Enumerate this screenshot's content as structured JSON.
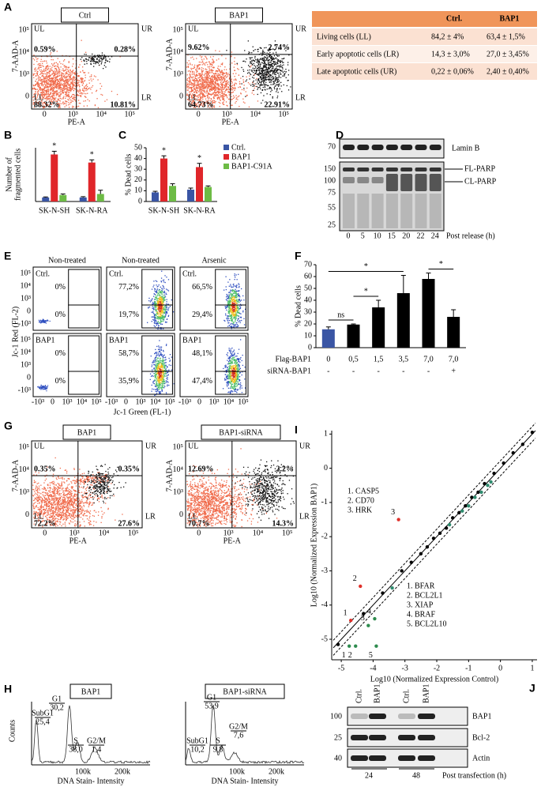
{
  "panel_labels": [
    "A",
    "B",
    "C",
    "D",
    "E",
    "F",
    "G",
    "H",
    "I",
    "J"
  ],
  "panel_a": {
    "plots": [
      {
        "title": "Ctrl",
        "percents": [
          "0.59%",
          "0.28%",
          "88.32%",
          "10.81%"
        ]
      },
      {
        "title": "BAP1",
        "percents": [
          "9.62%",
          "2.74%",
          "64.73%",
          "22.91%"
        ]
      }
    ],
    "quadrants": [
      "UL",
      "UR",
      "LL",
      "LR"
    ],
    "y_label": "7-AAD-A",
    "x_label": "PE-A",
    "yticks": [
      "10⁵",
      "10⁴",
      "10³",
      "0"
    ],
    "xticks": [
      "0",
      "10³",
      "10⁴",
      "10⁵"
    ]
  },
  "table": {
    "header": [
      "Ctrl.",
      "BAP1"
    ],
    "rows": [
      [
        "Living cells (LL)",
        "84,2 ± 4%",
        "63,4 ± 1,5%"
      ],
      [
        "Early apoptotic cells (LR)",
        "14,3 ± 3,0%",
        "27,0 ± 3,45%"
      ],
      [
        "Late apoptotic cells (UR)",
        "0,22 ± 0,06%",
        "2,40 ± 0,40%"
      ]
    ]
  },
  "chart_data": [
    {
      "type": "bar",
      "y_label": [
        "Number of",
        "fragmented cells"
      ],
      "categories": [
        "SK-N-SH",
        "SK-N-RA"
      ],
      "ylim": [
        0,
        200
      ],
      "series": [
        {
          "color": "#3a55a4",
          "values": [
            15,
            15
          ],
          "errors": [
            2,
            3
          ]
        },
        {
          "color": "#e0262a",
          "values": [
            175,
            145
          ],
          "errors": [
            12,
            10
          ]
        },
        {
          "color": "#6dbb45",
          "values": [
            24,
            28
          ],
          "errors": [
            4,
            14
          ]
        }
      ],
      "asterisks": [
        "*",
        "*"
      ]
    },
    {
      "type": "bar",
      "y_label": [
        "% Dead cells"
      ],
      "categories": [
        "SK-N-SH",
        "SK-N-RA"
      ],
      "ylim": [
        0,
        50
      ],
      "yticks": [
        0,
        10,
        20,
        30,
        40,
        50
      ],
      "legend": "right",
      "series": [
        {
          "name": "Ctrl.",
          "color": "#3a55a4",
          "values": [
            8.5,
            11
          ],
          "errors": [
            1,
            1.5
          ]
        },
        {
          "name": "BAP1",
          "color": "#e0262a",
          "values": [
            40,
            32
          ],
          "errors": [
            2.5,
            3.5
          ]
        },
        {
          "name": "BAP1-C91A",
          "color": "#6dbb45",
          "values": [
            14.5,
            13.5
          ],
          "errors": [
            2,
            1
          ]
        }
      ],
      "asterisks": [
        "*",
        "*"
      ]
    },
    {
      "type": "bar",
      "y_label": [
        "% Dead cells"
      ],
      "ylim": [
        0,
        70
      ],
      "yticks": [
        0,
        10,
        20,
        30,
        40,
        50,
        60,
        70
      ],
      "values": [
        15.5,
        19.5,
        34,
        46,
        58,
        26
      ],
      "errors": [
        2,
        0.5,
        6,
        15,
        5,
        6
      ],
      "colors": [
        "#3a55a4",
        "#000000",
        "#000000",
        "#000000",
        "#000000",
        "#000000"
      ],
      "rows": [
        {
          "name": "Flag-BAP1",
          "labels": [
            "0",
            "0,5",
            "1,5",
            "3,5",
            "7,0",
            "7,0"
          ]
        },
        {
          "name": "siRNA-BAP1",
          "labels": [
            "-",
            "-",
            "-",
            "-",
            "-",
            "+"
          ]
        }
      ],
      "brackets": [
        "ns",
        "*",
        "*",
        "*"
      ]
    },
    {
      "type": "scatter",
      "x_label": "Log10 (Normalized Expression Control)",
      "y_label": "Log10 (Normalized Expression BAP1)",
      "xlim": [
        -5.3,
        1.15
      ],
      "ylim": [
        -5.6,
        1.1
      ],
      "xticks": [
        -5,
        -4,
        -3,
        -2,
        -1,
        0,
        1
      ],
      "yticks": [
        1,
        0,
        -1,
        -2,
        -3,
        -4,
        -5
      ],
      "series": [
        {
          "color": "#000000",
          "x": [
            -5.1,
            -4.3,
            -3.7,
            -3.1,
            -2.8,
            -2.5,
            -2.3,
            -2.1,
            -1.9,
            -1.7,
            -1.5,
            -1.3,
            -1.1,
            -0.9,
            -0.7,
            -0.5,
            -0.2,
            0.1,
            0.4,
            0.7,
            1.0
          ],
          "y": [
            -5.15,
            -4.25,
            -3.65,
            -3.0,
            -2.75,
            -2.5,
            -2.3,
            -2.05,
            -1.9,
            -1.75,
            -1.45,
            -1.3,
            -1.1,
            -0.85,
            -0.7,
            -0.45,
            -0.15,
            0.15,
            0.45,
            0.7,
            1.05
          ]
        },
        {
          "color": "#2e8b6e",
          "x": [
            -3.4,
            -1.6,
            -1.2,
            -1.0,
            -0.8,
            -0.6,
            -0.4,
            -0.3
          ],
          "y": [
            -3.5,
            -1.65,
            -1.25,
            -1.1,
            -0.85,
            -0.7,
            -0.5,
            -0.4
          ]
        },
        {
          "color": "#e0302a",
          "labels": [
            "1. CASP5",
            "2. CD70",
            "3. HRK"
          ],
          "point_labels": [
            "1",
            "2",
            "3"
          ],
          "x": [
            -4.7,
            -4.4,
            -3.2
          ],
          "y": [
            -4.45,
            -3.45,
            -1.5
          ]
        },
        {
          "color": "#2e8b4e",
          "labels": [
            "1. BFAR",
            "2. BCL2L1",
            "3. XIAP",
            "4. BRAF",
            "5. BCL2L10"
          ],
          "point_labels": [
            "1",
            "2",
            "3",
            "4",
            "5"
          ],
          "x": [
            -4.75,
            -4.55,
            -4.15,
            -3.95,
            -3.9
          ],
          "y": [
            -5.2,
            -5.2,
            -4.6,
            -4.4,
            -5.2
          ]
        }
      ]
    }
  ],
  "panel_d": {
    "mw_top": [
      "70"
    ],
    "mw_bottom": [
      "150",
      "100",
      "75",
      "55",
      "25"
    ],
    "bands": [
      "Lamin B",
      "FL-PARP",
      "CL-PARP"
    ],
    "lanes": [
      "0",
      "5",
      "10",
      "15",
      "20",
      "22",
      "24"
    ],
    "x_label": "Post release (h)"
  },
  "panel_e": {
    "columns": [
      "Non-treated",
      "Non-treated",
      "Arsenic"
    ],
    "rows": [
      {
        "name": "Ctrl.",
        "percents": [
          [
            "0%",
            "0%"
          ],
          [
            "77,2%",
            "19,7%"
          ],
          [
            "66,5%",
            "29,4%"
          ]
        ]
      },
      {
        "name": "BAP1",
        "percents": [
          [
            "0%",
            "0%"
          ],
          [
            "58,7%",
            "35,9%"
          ],
          [
            "48,1%",
            "47,4%"
          ]
        ]
      }
    ],
    "y_label": "Jc-1 Red (FL-2)",
    "x_label": "Jc-1 Green (FL-1)",
    "yticks": [
      "10⁵",
      "10⁴",
      "10³",
      "0",
      "-10³"
    ],
    "xticks": [
      "-10³",
      "0",
      "10³",
      "10⁴",
      "10⁵"
    ]
  },
  "panel_g": {
    "plots": [
      {
        "title": "BAP1",
        "percents": [
          "0.35%",
          "0.35%",
          "72.2%",
          "27.6%"
        ]
      },
      {
        "title": "BAP1-siRNA",
        "percents": [
          "12.69%",
          "2.2%",
          "70.7%",
          "14.3%"
        ]
      }
    ],
    "quadrants": [
      "UL",
      "UR",
      "LL",
      "LR"
    ],
    "y_label": "7-AAD-A",
    "x_label": "PE-A",
    "yticks": [
      "10⁵",
      "10⁴",
      "10³",
      "0"
    ],
    "xticks": [
      "0",
      "10³",
      "10⁴",
      "10⁵"
    ]
  },
  "panel_h": {
    "plots": [
      {
        "title": "BAP1",
        "phases": [
          {
            "name": "SubG1",
            "value": "25,4"
          },
          {
            "name": "G1",
            "value": "30,2"
          },
          {
            "name": "S",
            "value": "38,0"
          },
          {
            "name": "G2/M",
            "value": "1,4"
          }
        ]
      },
      {
        "title": "BAP1-siRNA",
        "phases": [
          {
            "name": "SubG1",
            "value": "10,2"
          },
          {
            "name": "G1",
            "value": "53,9"
          },
          {
            "name": "S",
            "value": "9,8"
          },
          {
            "name": "G2/M",
            "value": "7,6"
          }
        ]
      }
    ],
    "y_label": "Counts",
    "xticks": [
      "100k",
      "200k"
    ],
    "x_label": "DNA Stain- Intensity"
  },
  "panel_j": {
    "lanes": [
      "Ctrl.",
      "BAP1",
      "Ctrl.",
      "BAP1"
    ],
    "mw": [
      "100",
      "25",
      "40"
    ],
    "bands": [
      "BAP1",
      "Bcl-2",
      "Actin"
    ],
    "times": [
      "24",
      "48"
    ],
    "x_label": "Post transfection (h)"
  }
}
